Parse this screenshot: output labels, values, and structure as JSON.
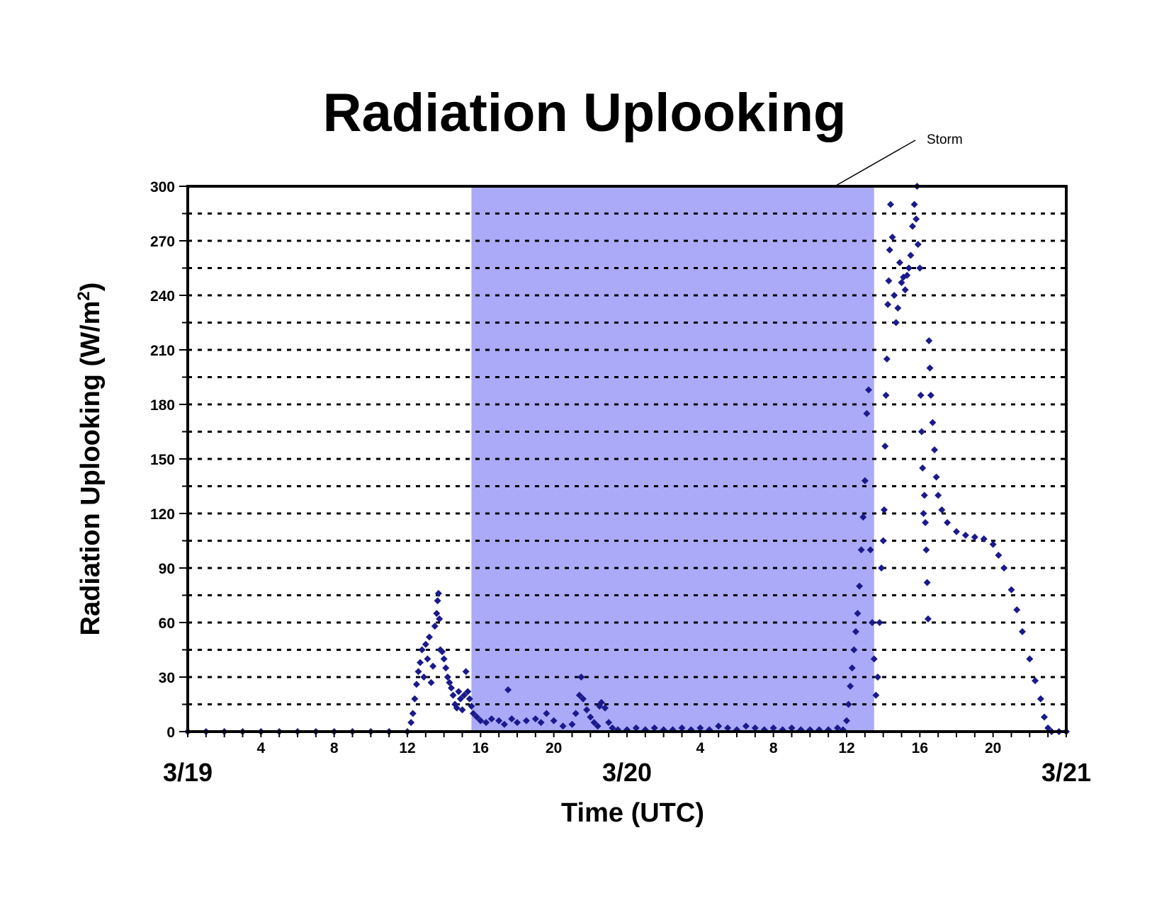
{
  "colors": {
    "background": "#ffffff",
    "shaded_region": "#aaaaf8",
    "markers": "#1a1a8c",
    "axes": "#000000"
  },
  "chart_data": {
    "type": "scatter",
    "title": "Radiation Uplooking",
    "xlabel": "Time (UTC)",
    "ylabel_main": "Radiation Uplooking (W/m",
    "ylabel_sup": "2",
    "ylabel_end": ")",
    "ylim": [
      0,
      300
    ],
    "y_ticks": [
      "0",
      "30",
      "60",
      "90",
      "120",
      "150",
      "180",
      "210",
      "240",
      "270",
      "300"
    ],
    "x_unit": "hours since 3/19 00 UTC",
    "xlim": [
      0,
      48
    ],
    "x_hour_ticks": [
      {
        "x": 4,
        "label": "4"
      },
      {
        "x": 8,
        "label": "8"
      },
      {
        "x": 12,
        "label": "12"
      },
      {
        "x": 16,
        "label": "16"
      },
      {
        "x": 20,
        "label": "20"
      },
      {
        "x": 28,
        "label": "4"
      },
      {
        "x": 32,
        "label": "8"
      },
      {
        "x": 36,
        "label": "12"
      },
      {
        "x": 40,
        "label": "16"
      },
      {
        "x": 44,
        "label": "20"
      }
    ],
    "x_date_ticks": [
      {
        "x": 0,
        "label": "3/19"
      },
      {
        "x": 24,
        "label": "3/20"
      },
      {
        "x": 48,
        "label": "3/21"
      }
    ],
    "grid": "horizontal dotted every 15",
    "legend": "none",
    "shaded_region": {
      "x_start": 15.5,
      "x_end": 37.5
    },
    "annotation": {
      "text": "Storm"
    },
    "series": [
      {
        "points": [
          [
            0,
            0
          ],
          [
            1,
            0
          ],
          [
            2,
            0
          ],
          [
            3,
            0
          ],
          [
            4,
            0
          ],
          [
            5,
            0
          ],
          [
            6,
            0
          ],
          [
            7,
            0
          ],
          [
            8,
            0
          ],
          [
            9,
            0
          ],
          [
            10,
            0
          ],
          [
            11,
            0
          ],
          [
            12,
            0
          ],
          [
            12.2,
            5
          ],
          [
            12.3,
            10
          ],
          [
            12.4,
            18
          ],
          [
            12.5,
            26
          ],
          [
            12.6,
            33
          ],
          [
            12.7,
            38
          ],
          [
            12.8,
            45
          ],
          [
            12.9,
            30
          ],
          [
            13,
            48
          ],
          [
            13.1,
            40
          ],
          [
            13.2,
            52
          ],
          [
            13.3,
            27
          ],
          [
            13.4,
            36
          ],
          [
            13.5,
            58
          ],
          [
            13.6,
            65
          ],
          [
            13.65,
            72
          ],
          [
            13.7,
            76
          ],
          [
            13.75,
            62
          ],
          [
            13.8,
            45
          ],
          [
            13.9,
            44
          ],
          [
            14,
            40
          ],
          [
            14.1,
            35
          ],
          [
            14.2,
            30
          ],
          [
            14.3,
            27
          ],
          [
            14.4,
            24
          ],
          [
            14.5,
            20
          ],
          [
            14.6,
            15
          ],
          [
            14.7,
            13
          ],
          [
            14.8,
            22
          ],
          [
            14.9,
            18
          ],
          [
            15,
            12
          ],
          [
            15.1,
            20
          ],
          [
            15.2,
            33
          ],
          [
            15.3,
            22
          ],
          [
            15.4,
            18
          ],
          [
            15.5,
            14
          ],
          [
            15.6,
            10
          ],
          [
            15.8,
            8
          ],
          [
            16,
            6
          ],
          [
            16.3,
            5
          ],
          [
            16.6,
            7
          ],
          [
            17,
            6
          ],
          [
            17.3,
            4
          ],
          [
            17.5,
            23
          ],
          [
            17.7,
            7
          ],
          [
            18,
            5
          ],
          [
            18.5,
            6
          ],
          [
            19,
            7
          ],
          [
            19.3,
            5
          ],
          [
            19.6,
            10
          ],
          [
            20,
            6
          ],
          [
            20.5,
            3
          ],
          [
            21,
            4
          ],
          [
            21.2,
            10
          ],
          [
            21.4,
            20
          ],
          [
            21.5,
            30
          ],
          [
            21.6,
            18
          ],
          [
            21.8,
            12
          ],
          [
            22,
            8
          ],
          [
            22.2,
            5
          ],
          [
            22.4,
            3
          ],
          [
            22.5,
            14
          ],
          [
            22.6,
            16
          ],
          [
            22.8,
            13
          ],
          [
            23,
            5
          ],
          [
            23.2,
            2
          ],
          [
            23.5,
            1
          ],
          [
            24,
            1
          ],
          [
            24.5,
            2
          ],
          [
            25,
            1
          ],
          [
            25.5,
            2
          ],
          [
            26,
            1
          ],
          [
            26.5,
            1
          ],
          [
            27,
            2
          ],
          [
            27.5,
            1
          ],
          [
            28,
            2
          ],
          [
            28.5,
            1
          ],
          [
            29,
            3
          ],
          [
            29.5,
            2
          ],
          [
            30,
            1
          ],
          [
            30.5,
            3
          ],
          [
            31,
            2
          ],
          [
            31.5,
            1
          ],
          [
            32,
            2
          ],
          [
            32.5,
            1
          ],
          [
            33,
            2
          ],
          [
            33.5,
            1
          ],
          [
            34,
            1
          ],
          [
            34.5,
            1
          ],
          [
            35,
            1
          ],
          [
            35.5,
            2
          ],
          [
            35.8,
            1
          ],
          [
            36,
            6
          ],
          [
            36.1,
            15
          ],
          [
            36.2,
            25
          ],
          [
            36.3,
            35
          ],
          [
            36.4,
            45
          ],
          [
            36.5,
            55
          ],
          [
            36.6,
            65
          ],
          [
            36.7,
            80
          ],
          [
            36.8,
            100
          ],
          [
            36.9,
            118
          ],
          [
            37,
            138
          ],
          [
            37.1,
            175
          ],
          [
            37.2,
            188
          ],
          [
            37.3,
            100
          ],
          [
            37.4,
            60
          ],
          [
            37.5,
            40
          ],
          [
            37.6,
            20
          ],
          [
            37.7,
            30
          ],
          [
            37.8,
            60
          ],
          [
            37.9,
            90
          ],
          [
            38,
            105
          ],
          [
            38.05,
            122
          ],
          [
            38.1,
            157
          ],
          [
            38.15,
            185
          ],
          [
            38.2,
            205
          ],
          [
            38.25,
            235
          ],
          [
            38.3,
            248
          ],
          [
            38.35,
            265
          ],
          [
            38.4,
            290
          ],
          [
            38.5,
            272
          ],
          [
            38.6,
            240
          ],
          [
            38.7,
            225
          ],
          [
            38.8,
            233
          ],
          [
            38.9,
            258
          ],
          [
            39,
            247
          ],
          [
            39.1,
            250
          ],
          [
            39.2,
            243
          ],
          [
            39.3,
            251
          ],
          [
            39.4,
            255
          ],
          [
            39.5,
            262
          ],
          [
            39.6,
            278
          ],
          [
            39.7,
            290
          ],
          [
            39.8,
            282
          ],
          [
            39.85,
            300
          ],
          [
            39.9,
            268
          ],
          [
            40,
            255
          ],
          [
            40.05,
            185
          ],
          [
            40.1,
            165
          ],
          [
            40.15,
            145
          ],
          [
            40.2,
            120
          ],
          [
            40.25,
            130
          ],
          [
            40.3,
            115
          ],
          [
            40.35,
            100
          ],
          [
            40.4,
            82
          ],
          [
            40.45,
            62
          ],
          [
            40.5,
            215
          ],
          [
            40.55,
            200
          ],
          [
            40.6,
            185
          ],
          [
            40.7,
            170
          ],
          [
            40.8,
            155
          ],
          [
            40.9,
            140
          ],
          [
            41,
            130
          ],
          [
            41.2,
            122
          ],
          [
            41.5,
            115
          ],
          [
            42,
            110
          ],
          [
            42.5,
            108
          ],
          [
            43,
            107
          ],
          [
            43.5,
            106
          ],
          [
            44,
            103
          ],
          [
            44.3,
            97
          ],
          [
            44.6,
            90
          ],
          [
            45,
            78
          ],
          [
            45.3,
            67
          ],
          [
            45.6,
            55
          ],
          [
            46,
            40
          ],
          [
            46.3,
            28
          ],
          [
            46.6,
            18
          ],
          [
            46.8,
            8
          ],
          [
            47,
            2
          ],
          [
            47.2,
            0
          ],
          [
            47.6,
            0
          ],
          [
            48,
            0
          ]
        ]
      }
    ]
  }
}
